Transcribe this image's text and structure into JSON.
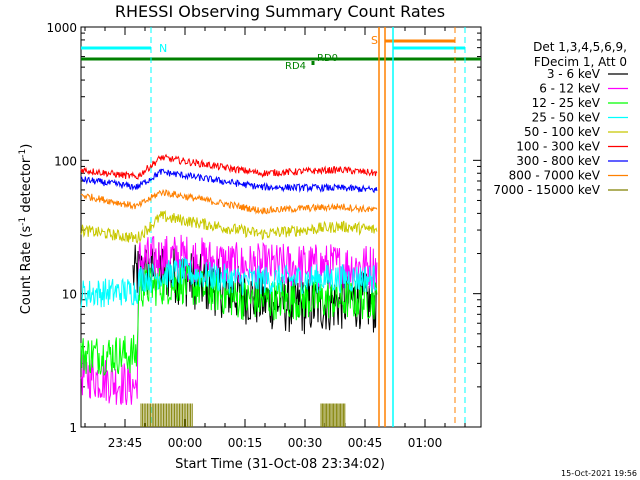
{
  "chart_data": {
    "type": "line",
    "title": "RHESSI Observing Summary Count Rates",
    "xlabel": "Start Time (31-Oct-08 23:34:02)",
    "ylabel_main": "Count Rate (s",
    "ylabel_sup1": "-1",
    "ylabel_mid": " detector",
    "ylabel_sup2": "-1",
    "ylabel_end": ")",
    "y_scale": "log",
    "ylim": [
      1,
      1000
    ],
    "xlim_minutes_after_23_34_02": [
      0,
      100
    ],
    "x_ticks": [
      "23:45",
      "00:00",
      "00:15",
      "00:30",
      "00:45",
      "01:00"
    ],
    "y_ticks": [
      "1",
      "10",
      "100",
      "1000"
    ],
    "legend_header": [
      "Det 1,3,4,5,6,9,",
      "FDecim 1, Att 0"
    ],
    "legend_position": "right",
    "series": [
      {
        "name": "3 - 6 keV",
        "color": "#000000",
        "values_by_minute": [
          [
            13,
            14
          ],
          [
            20,
            15
          ],
          [
            30,
            12
          ],
          [
            45,
            9
          ],
          [
            55,
            8
          ],
          [
            70,
            9
          ],
          [
            74,
            8
          ]
        ]
      },
      {
        "name": "6 - 12 keV",
        "color": "#ff00ff",
        "values_by_minute": [
          [
            0,
            2.5
          ],
          [
            14,
            2
          ],
          [
            14.5,
            18
          ],
          [
            25,
            19
          ],
          [
            40,
            16
          ],
          [
            60,
            16
          ],
          [
            74,
            16
          ]
        ]
      },
      {
        "name": "12 - 25 keV",
        "color": "#00ff00",
        "values_by_minute": [
          [
            0,
            3.5
          ],
          [
            14,
            3.5
          ],
          [
            14.5,
            11
          ],
          [
            25,
            12
          ],
          [
            40,
            9
          ],
          [
            60,
            9
          ],
          [
            74,
            9
          ]
        ]
      },
      {
        "name": "25 - 50 keV",
        "color": "#00ffff",
        "values_by_minute": [
          [
            0,
            10
          ],
          [
            14,
            10.5
          ],
          [
            14.5,
            13
          ],
          [
            25,
            14.5
          ],
          [
            40,
            12.5
          ],
          [
            60,
            13
          ],
          [
            74,
            13
          ]
        ]
      },
      {
        "name": "50 - 100 keV",
        "color": "#c8c800",
        "values_by_minute": [
          [
            0,
            30
          ],
          [
            14,
            26
          ],
          [
            20,
            38
          ],
          [
            45,
            28
          ],
          [
            65,
            32
          ],
          [
            74,
            30
          ]
        ]
      },
      {
        "name": "100 - 300 keV",
        "color": "#ff0000",
        "values_by_minute": [
          [
            0,
            85
          ],
          [
            14,
            75
          ],
          [
            20,
            105
          ],
          [
            45,
            80
          ],
          [
            65,
            85
          ],
          [
            74,
            80
          ]
        ]
      },
      {
        "name": "300 - 800 keV",
        "color": "#0000ff",
        "values_by_minute": [
          [
            0,
            72
          ],
          [
            14,
            63
          ],
          [
            20,
            82
          ],
          [
            45,
            63
          ],
          [
            65,
            62
          ],
          [
            74,
            60
          ]
        ]
      },
      {
        "name": "800 - 7000 keV",
        "color": "#ff8000",
        "values_by_minute": [
          [
            0,
            55
          ],
          [
            14,
            45
          ],
          [
            20,
            58
          ],
          [
            45,
            42
          ],
          [
            65,
            45
          ],
          [
            74,
            42
          ]
        ]
      },
      {
        "name": "7000 - 15000 keV",
        "color": "#808000",
        "values_by_minute": [
          [
            15,
            1.5
          ],
          [
            28,
            1.5
          ],
          [
            60,
            1.5
          ],
          [
            66,
            1.5
          ]
        ]
      }
    ],
    "flags": {
      "N": "N",
      "S": "S",
      "RD0": "RD0",
      "RD4": "RD4"
    },
    "timestamp": "15-Oct-2021 19:56"
  }
}
